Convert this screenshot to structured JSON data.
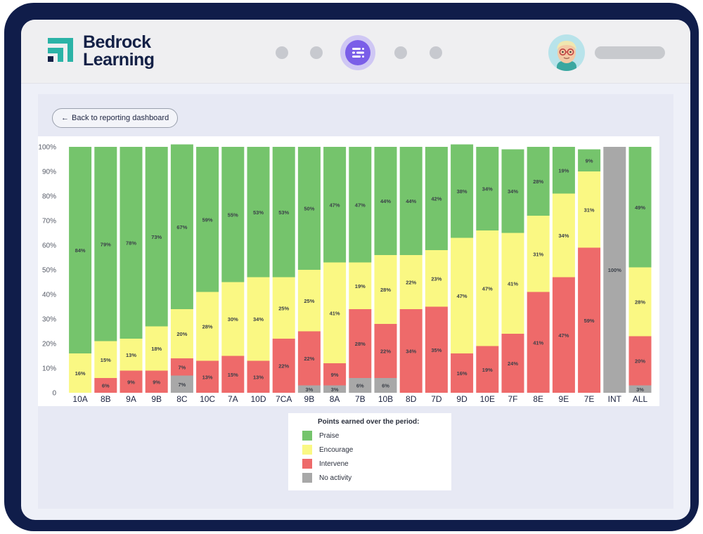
{
  "app": {
    "logo_line1": "Bedrock",
    "logo_line2": "Learning"
  },
  "colors": {
    "praise": "#75c46c",
    "encourage": "#faf883",
    "intervene": "#ee6a6a",
    "no_activity": "#a8a8a8",
    "brand": "#2bb3a7",
    "accent": "#7a5ee8"
  },
  "toolbar": {
    "back_label": "Back to reporting dashboard",
    "back_icon": "arrow-left-icon"
  },
  "chart_data": {
    "type": "bar",
    "stacked": true,
    "y_unit": "%",
    "ylim": [
      0,
      100
    ],
    "y_ticks": [
      "0",
      "10%",
      "20%",
      "30%",
      "40%",
      "50%",
      "60%",
      "70%",
      "80%",
      "90%",
      "100%"
    ],
    "categories": [
      "10A",
      "8B",
      "9A",
      "9B",
      "8C",
      "10C",
      "7A",
      "10D",
      "7CA",
      "9B",
      "8A",
      "7B",
      "10B",
      "8D",
      "7D",
      "9D",
      "10E",
      "7F",
      "8E",
      "9E",
      "7E",
      "INT",
      "ALL"
    ],
    "series": [
      {
        "name": "No activity",
        "key": "no_activity",
        "values": [
          0,
          0,
          0,
          0,
          7,
          0,
          0,
          0,
          0,
          3,
          3,
          6,
          6,
          0,
          0,
          0,
          0,
          0,
          0,
          0,
          0,
          100,
          3
        ]
      },
      {
        "name": "Intervene",
        "key": "intervene",
        "values": [
          0,
          6,
          9,
          9,
          7,
          13,
          15,
          13,
          22,
          22,
          9,
          28,
          22,
          34,
          35,
          16,
          19,
          24,
          41,
          47,
          59,
          0,
          20
        ]
      },
      {
        "name": "Encourage",
        "key": "encourage",
        "values": [
          16,
          15,
          13,
          18,
          20,
          28,
          30,
          34,
          25,
          25,
          41,
          19,
          28,
          22,
          23,
          47,
          47,
          41,
          31,
          34,
          31,
          0,
          28
        ]
      },
      {
        "name": "Praise",
        "key": "praise",
        "values": [
          84,
          79,
          78,
          73,
          67,
          59,
          55,
          53,
          53,
          50,
          47,
          47,
          44,
          44,
          42,
          38,
          34,
          34,
          28,
          19,
          9,
          0,
          49
        ]
      }
    ],
    "legend": {
      "title": "Points earned over the period:",
      "items": [
        "Praise",
        "Encourage",
        "Intervene",
        "No activity"
      ]
    }
  }
}
